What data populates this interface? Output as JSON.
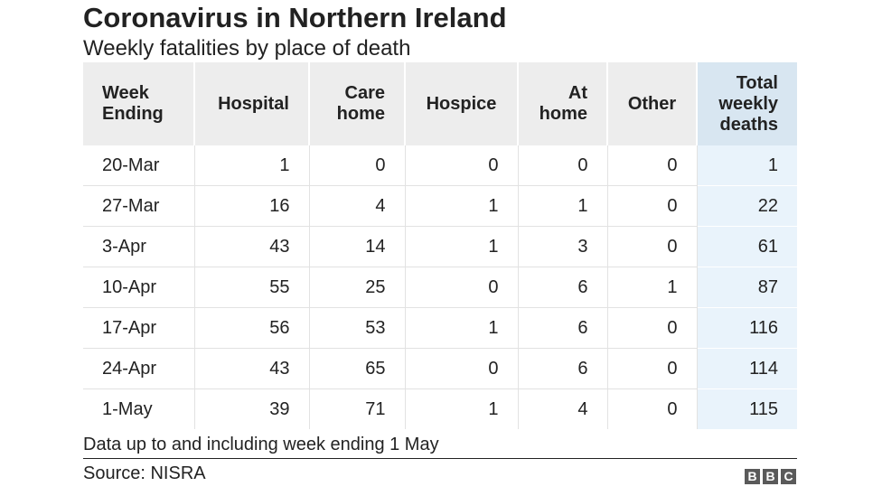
{
  "chart_data": {
    "type": "table",
    "title": "Coronavirus in Northern Ireland",
    "subtitle": "Weekly fatalities by place of death",
    "columns": [
      {
        "label": "Week Ending",
        "line1": "Week",
        "line2": "Ending"
      },
      {
        "label": "Hospital",
        "line1": "Hospital",
        "line2": ""
      },
      {
        "label": "Care home",
        "line1": "Care",
        "line2": "home"
      },
      {
        "label": "Hospice",
        "line1": "Hospice",
        "line2": ""
      },
      {
        "label": "At home",
        "line1": "At",
        "line2": "home"
      },
      {
        "label": "Other",
        "line1": "Other",
        "line2": ""
      },
      {
        "label": "Total weekly deaths",
        "line1": "Total",
        "line2": "weekly",
        "line3": "deaths"
      }
    ],
    "rows": [
      {
        "week": "20-Mar",
        "hospital": 1,
        "care_home": 0,
        "hospice": 0,
        "at_home": 0,
        "other": 0,
        "total": 1
      },
      {
        "week": "27-Mar",
        "hospital": 16,
        "care_home": 4,
        "hospice": 1,
        "at_home": 1,
        "other": 0,
        "total": 22
      },
      {
        "week": "3-Apr",
        "hospital": 43,
        "care_home": 14,
        "hospice": 1,
        "at_home": 3,
        "other": 0,
        "total": 61
      },
      {
        "week": "10-Apr",
        "hospital": 55,
        "care_home": 25,
        "hospice": 0,
        "at_home": 6,
        "other": 1,
        "total": 87
      },
      {
        "week": "17-Apr",
        "hospital": 56,
        "care_home": 53,
        "hospice": 1,
        "at_home": 6,
        "other": 0,
        "total": 116
      },
      {
        "week": "24-Apr",
        "hospital": 43,
        "care_home": 65,
        "hospice": 0,
        "at_home": 6,
        "other": 0,
        "total": 114
      },
      {
        "week": "1-May",
        "hospital": 39,
        "care_home": 71,
        "hospice": 1,
        "at_home": 4,
        "other": 0,
        "total": 115
      }
    ]
  },
  "footer": {
    "note": "Data up to and including week ending 1 May",
    "source": "Source: NISRA",
    "logo_letters": [
      "B",
      "B",
      "C"
    ]
  },
  "colors": {
    "header_bg": "#ededed",
    "total_header_bg": "#d8e6f1",
    "total_cell_bg": "#e9f3fb",
    "text": "#222222",
    "logo_bg": "#5a5a5a"
  }
}
